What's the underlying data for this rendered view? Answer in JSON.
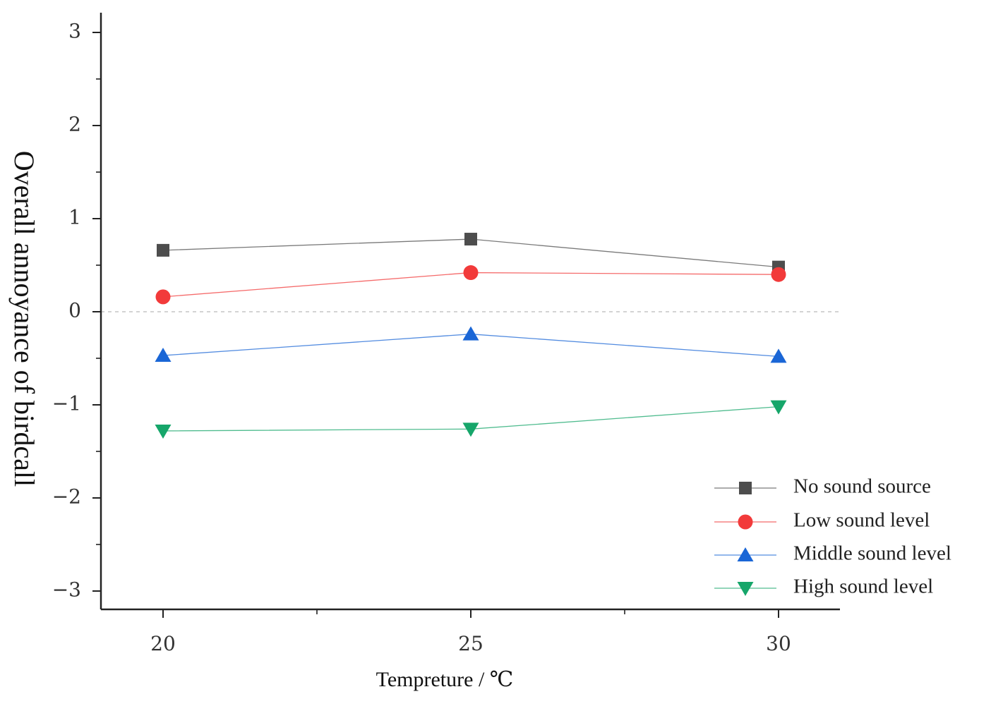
{
  "chart_data": {
    "type": "line",
    "title": "",
    "xlabel": "Tempreture / ℃",
    "ylabel": "Overall annoyance of birdcall",
    "x": [
      20,
      25,
      30
    ],
    "xlim": [
      19,
      31
    ],
    "ylim": [
      -3.2,
      3.2
    ],
    "xticks": [
      "20",
      "25",
      "30"
    ],
    "yticks": [
      "3",
      "2",
      "1",
      "0",
      "−1",
      "−2",
      "−3"
    ],
    "ytick_values": [
      3,
      2,
      1,
      0,
      -1,
      -2,
      -3
    ],
    "reference_line": 0,
    "legend_position": "bottom-right",
    "series": [
      {
        "name": "No sound source",
        "marker": "square",
        "color": "#4d4d4d",
        "values": [
          0.66,
          0.78,
          0.48
        ]
      },
      {
        "name": "Low sound level",
        "marker": "circle",
        "color": "#f23a3a",
        "values": [
          0.16,
          0.42,
          0.4
        ]
      },
      {
        "name": "Middle sound level",
        "marker": "triangle-up",
        "color": "#1a66d6",
        "values": [
          -0.47,
          -0.24,
          -0.48
        ]
      },
      {
        "name": "High sound level",
        "marker": "triangle-down",
        "color": "#16a66a",
        "values": [
          -1.28,
          -1.26,
          -1.02
        ]
      }
    ]
  }
}
